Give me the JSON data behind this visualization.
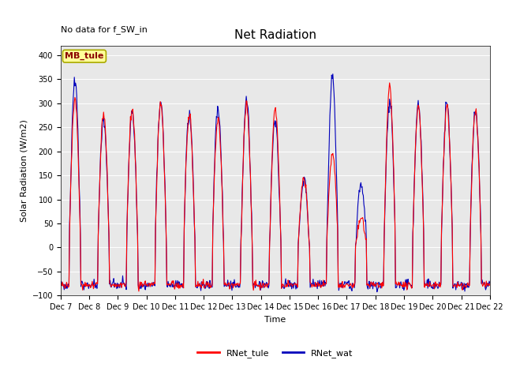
{
  "title": "Net Radiation",
  "xlabel": "Time",
  "ylabel": "Solar Radiation (W/m2)",
  "ylim": [
    -100,
    420
  ],
  "xlim_days": [
    7,
    22
  ],
  "yticks": [
    -100,
    -50,
    0,
    50,
    100,
    150,
    200,
    250,
    300,
    350,
    400
  ],
  "xtick_labels": [
    "Dec 7",
    "Dec 8",
    "Dec 9",
    "Dec 10",
    "Dec 11",
    "Dec 12",
    "Dec 13",
    "Dec 14",
    "Dec 15",
    "Dec 16",
    "Dec 17",
    "Dec 18",
    "Dec 19",
    "Dec 20",
    "Dec 21",
    "Dec 22"
  ],
  "color_tule": "#ff0000",
  "color_wat": "#0000bb",
  "legend_label_tule": "RNet_tule",
  "legend_label_wat": "RNet_wat",
  "no_data_text": "No data for f_SW_in",
  "station_label": "MB_tule",
  "axes_bg_color": "#e8e8e8",
  "fig_bg_color": "#ffffff",
  "title_fontsize": 11,
  "label_fontsize": 8,
  "tick_fontsize": 7,
  "annotation_fontsize": 8,
  "legend_fontsize": 8,
  "no_data_fontsize": 8,
  "linewidth": 0.8,
  "day_peaks_tule": [
    310,
    280,
    290,
    300,
    275,
    270,
    295,
    290,
    140,
    195,
    55,
    330,
    295,
    295,
    280
  ],
  "day_peaks_wat": [
    350,
    265,
    280,
    305,
    280,
    295,
    305,
    265,
    140,
    350,
    130,
    310,
    295,
    300,
    285
  ],
  "day_night_base": -78,
  "sunrise": 0.3,
  "sunset": 0.7,
  "seed": 42,
  "n_days": 15,
  "pts_per_day": 48
}
